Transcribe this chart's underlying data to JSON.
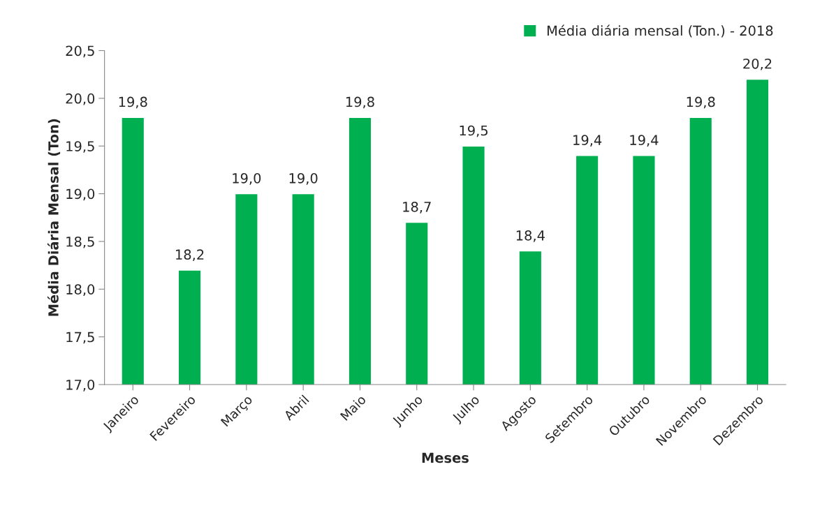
{
  "chart_data": {
    "type": "bar",
    "xlabel": "Meses",
    "ylabel": "Média Diária Mensal (Ton)",
    "categories": [
      "Janeiro",
      "Fevereiro",
      "Março",
      "Abril",
      "Maio",
      "Junho",
      "Julho",
      "Agosto",
      "Setembro",
      "Outubro",
      "Novembro",
      "Dezembro"
    ],
    "series": [
      {
        "name": "Média diária mensal (Ton.) - 2018",
        "color": "#00b050",
        "values": [
          19.8,
          18.2,
          19.0,
          19.0,
          19.8,
          18.7,
          19.5,
          18.4,
          19.4,
          19.4,
          19.8,
          20.2
        ],
        "value_labels": [
          "19,8",
          "18,2",
          "19,0",
          "19,0",
          "19,8",
          "18,7",
          "19,5",
          "18,4",
          "19,4",
          "19,4",
          "19,8",
          "20,2"
        ]
      }
    ],
    "ylim": [
      17.0,
      20.5
    ],
    "yticks": [
      {
        "value": 17.0,
        "label": "17,0"
      },
      {
        "value": 17.5,
        "label": "17,5"
      },
      {
        "value": 18.0,
        "label": "18,0"
      },
      {
        "value": 18.5,
        "label": "18,5"
      },
      {
        "value": 19.0,
        "label": "19,0"
      },
      {
        "value": 19.5,
        "label": "19,5"
      },
      {
        "value": 20.0,
        "label": "20,0"
      },
      {
        "value": 20.5,
        "label": "20,5"
      }
    ],
    "grid": false,
    "legend": "top right"
  }
}
